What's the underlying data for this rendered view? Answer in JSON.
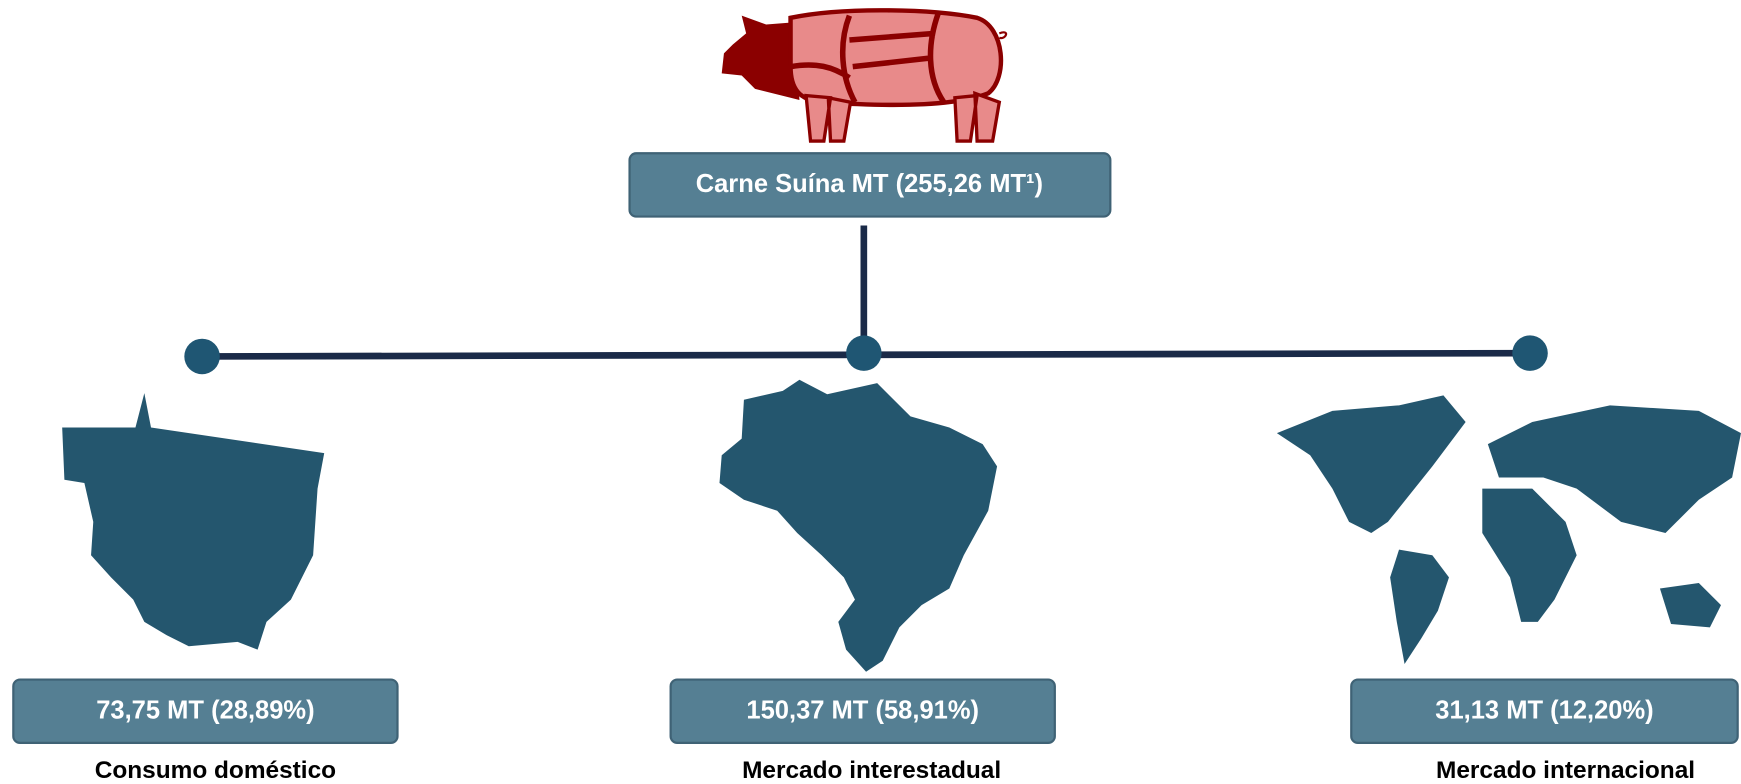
{
  "root": {
    "label": "Carne Suína MT (255,26 MT¹)"
  },
  "branches": [
    {
      "value": "73,75 MT (28,89%)",
      "label": "Consumo doméstico"
    },
    {
      "value": "150,37 MT (58,91%)",
      "label": "Mercado interestadual"
    },
    {
      "value": "31,13 MT (12,20%)",
      "label": "Mercado internacional"
    }
  ]
}
